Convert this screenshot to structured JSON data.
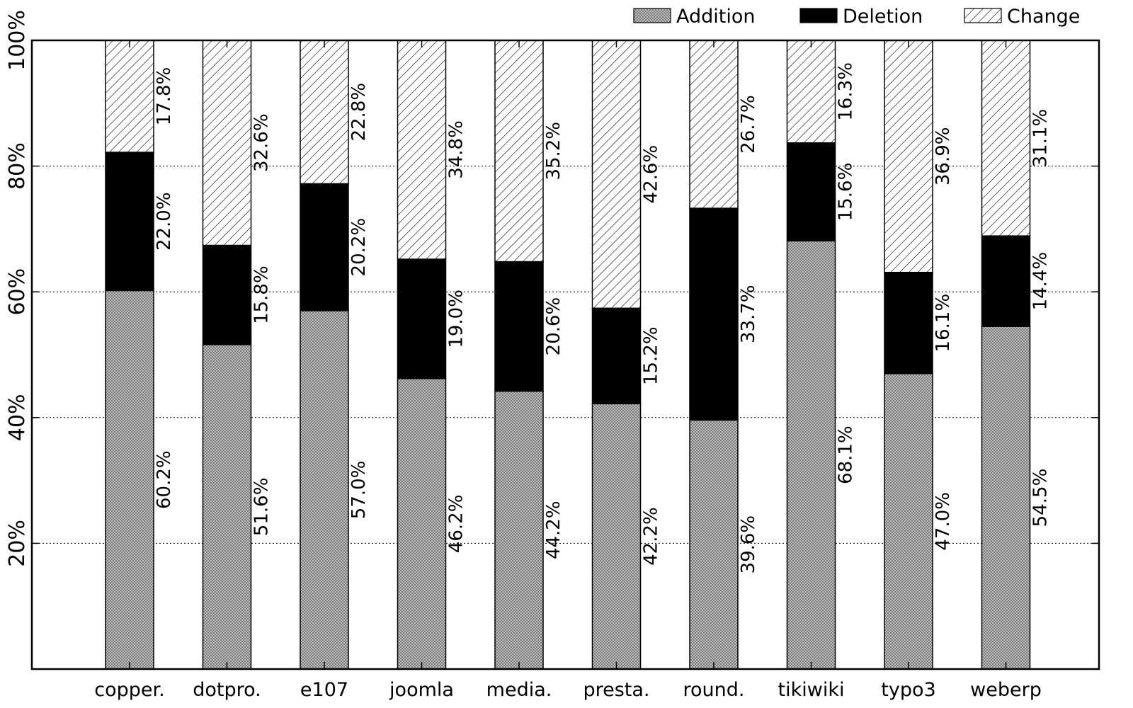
{
  "chart_data": {
    "type": "bar",
    "stacked": true,
    "normalized": true,
    "categories": [
      "copper.",
      "dotpro.",
      "e107",
      "joomla",
      "media.",
      "presta.",
      "round.",
      "tikiwiki",
      "typo3",
      "weberp"
    ],
    "series": [
      {
        "name": "Addition",
        "values": [
          60.2,
          51.6,
          57.0,
          46.2,
          44.2,
          42.2,
          39.6,
          68.1,
          47.0,
          54.5
        ],
        "labels": [
          "60.2%",
          "51.6%",
          "57.0%",
          "46.2%",
          "44.2%",
          "42.2%",
          "39.6%",
          "68.1%",
          "47.0%",
          "54.5%"
        ],
        "pattern": "crosshatch"
      },
      {
        "name": "Deletion",
        "values": [
          22.0,
          15.8,
          20.2,
          19.0,
          20.6,
          15.2,
          33.7,
          15.6,
          16.1,
          14.4
        ],
        "labels": [
          "22.0%",
          "15.8%",
          "20.2%",
          "19.0%",
          "20.6%",
          "15.2%",
          "33.7%",
          "15.6%",
          "16.1%",
          "14.4%"
        ],
        "pattern": "solid-black"
      },
      {
        "name": "Change",
        "values": [
          17.8,
          32.6,
          22.8,
          34.8,
          35.2,
          42.6,
          26.7,
          16.3,
          36.9,
          31.1
        ],
        "labels": [
          "17.8%",
          "32.6%",
          "22.8%",
          "34.8%",
          "35.2%",
          "42.6%",
          "26.7%",
          "16.3%",
          "36.9%",
          "31.1%"
        ],
        "pattern": "diagonal-hatch"
      }
    ],
    "y_ticks": [
      20,
      40,
      60,
      80,
      100
    ],
    "y_tick_labels": [
      "20%",
      "40%",
      "60%",
      "80%",
      "100%"
    ],
    "ylim": [
      0,
      100
    ],
    "grid": "horizontal-dotted",
    "legend_position": "top-right",
    "title": "",
    "xlabel": "",
    "ylabel": ""
  }
}
